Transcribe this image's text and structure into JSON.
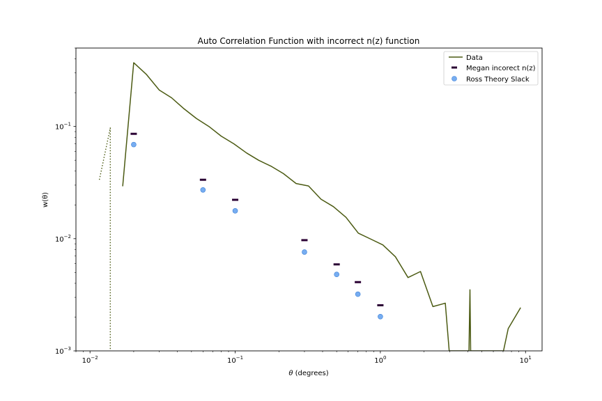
{
  "chart_data": {
    "type": "line",
    "title": "Auto Correlation Function with incorrect n(z) function",
    "xlabel_pre": "θ",
    "xlabel_post": " (degrees)",
    "ylabel": "w(θ)",
    "xscale": "log",
    "yscale": "log",
    "xlim": [
      0.008,
      13
    ],
    "ylim": [
      0.001,
      0.5
    ],
    "x_ticks": [
      {
        "value": 0.01,
        "base": "10",
        "exp": "−2"
      },
      {
        "value": 0.1,
        "base": "10",
        "exp": "−1"
      },
      {
        "value": 1,
        "base": "10",
        "exp": "0"
      },
      {
        "value": 10,
        "base": "10",
        "exp": "1"
      }
    ],
    "y_ticks": [
      {
        "value": 0.001,
        "base": "10",
        "exp": "−3"
      },
      {
        "value": 0.01,
        "base": "10",
        "exp": "−2"
      },
      {
        "value": 0.1,
        "base": "10",
        "exp": "−1"
      }
    ],
    "legend_position": "top-right",
    "series": [
      {
        "name": "Data",
        "kind": "line",
        "color": "#4b5a12",
        "x": [
          0.0168,
          0.02,
          0.0245,
          0.03,
          0.0365,
          0.044,
          0.054,
          0.066,
          0.08,
          0.098,
          0.12,
          0.145,
          0.178,
          0.215,
          0.263,
          0.32,
          0.39,
          0.475,
          0.58,
          0.705,
          0.86,
          1.04,
          1.27,
          1.55,
          1.89,
          2.3,
          2.8,
          2.98,
          4.08,
          4.14,
          4.19,
          7.05,
          7.6,
          9.25
        ],
        "y": [
          0.0293,
          0.37,
          0.29,
          0.211,
          0.18,
          0.145,
          0.118,
          0.1,
          0.082,
          0.07,
          0.058,
          0.05,
          0.044,
          0.038,
          0.031,
          0.0295,
          0.0225,
          0.0193,
          0.0155,
          0.0112,
          0.0099,
          0.0088,
          0.0069,
          0.0045,
          0.0051,
          0.00248,
          0.00266,
          0.001,
          0.001,
          0.0035,
          0.001,
          0.001,
          0.00158,
          0.00243
        ]
      },
      {
        "name": "",
        "kind": "dotted",
        "color": "#4b5a12",
        "x": [
          0.0116,
          0.0138,
          0.0138,
          0.0138
        ],
        "y": [
          0.0335,
          0.097,
          0.0245,
          0.001
        ]
      },
      {
        "name": "Megan incorect n(z)",
        "kind": "dash",
        "color": "#2a0033",
        "x": [
          0.02,
          0.06,
          0.1,
          0.3,
          0.5,
          0.7,
          1.0
        ],
        "y": [
          0.086,
          0.0335,
          0.0222,
          0.0097,
          0.0059,
          0.0041,
          0.00255
        ]
      },
      {
        "name": "Ross Theory Slack",
        "kind": "scatter",
        "color": "#5599ee",
        "x": [
          0.02,
          0.06,
          0.1,
          0.3,
          0.5,
          0.7,
          1.0
        ],
        "y": [
          0.069,
          0.0272,
          0.0177,
          0.0076,
          0.0048,
          0.0032,
          0.00202
        ]
      }
    ]
  }
}
